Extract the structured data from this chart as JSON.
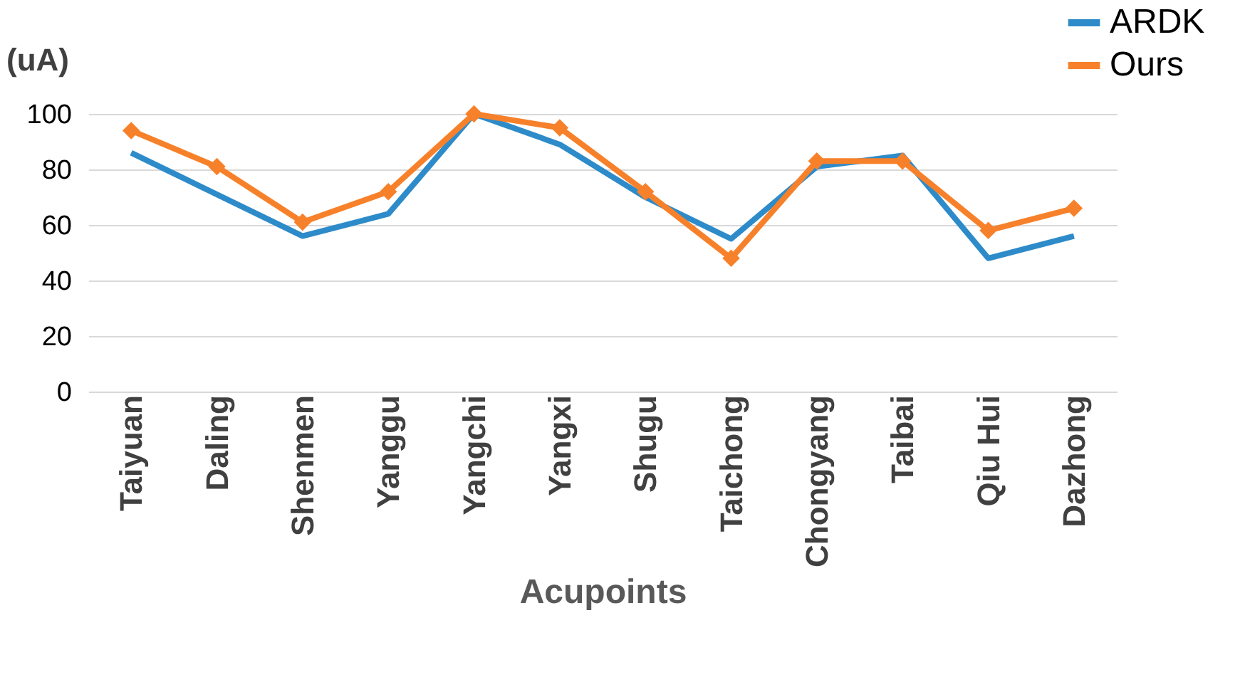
{
  "chart_data": {
    "type": "line",
    "xlabel": "Acupoints",
    "ylabel": "(uA)",
    "categories": [
      "Taiyuan",
      "Daling",
      "Shenmen",
      "Yanggu",
      "Yangchi",
      "Yangxi",
      "Shugu",
      "Taichong",
      "Chongyang",
      "Taibai",
      "Qiu Hui",
      "Dazhong"
    ],
    "series": [
      {
        "name": "ARDK",
        "color": "#2e8bc9",
        "marker": "none",
        "values": [
          86,
          71,
          56,
          64,
          100,
          89,
          70,
          55,
          81,
          85,
          48,
          56
        ]
      },
      {
        "name": "Ours",
        "color": "#f7812a",
        "marker": "diamond",
        "values": [
          94,
          81,
          61,
          72,
          100,
          95,
          72,
          48,
          83,
          83,
          58,
          66
        ]
      }
    ],
    "ylim": [
      0,
      100
    ],
    "yticks": [
      0,
      20,
      40,
      60,
      80,
      100
    ],
    "grid": "y",
    "legend": "top right"
  }
}
